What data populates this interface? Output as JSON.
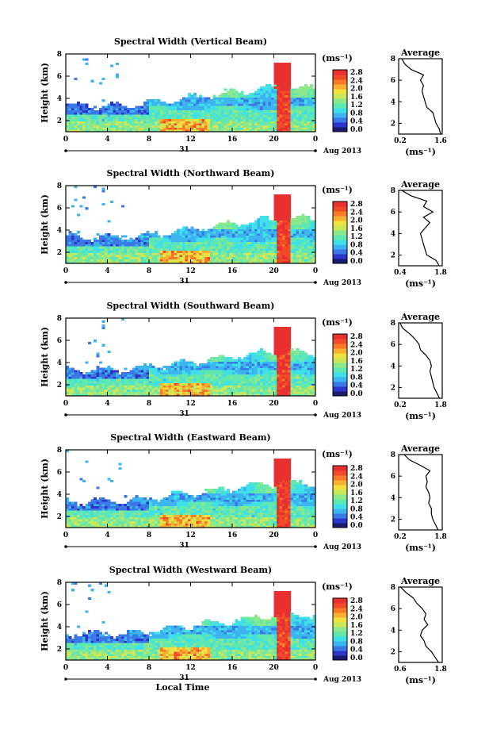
{
  "shared": {
    "height_axis_label": "Height (km)",
    "time_axis_label": "Local Time",
    "date_label": "Aug 2013",
    "day_label": "31",
    "unit_label": "(ms⁻¹)",
    "average_title": "Average",
    "x_ticks": [
      "0",
      "4",
      "8",
      "12",
      "16",
      "20",
      "0"
    ],
    "y_ticks": [
      "2",
      "4",
      "6",
      "8"
    ],
    "colorbar_ticks": [
      "2.8",
      "2.4",
      "2.0",
      "1.6",
      "1.2",
      "0.8",
      "0.4",
      "0.0"
    ],
    "colorbar_colors": [
      "#1a1a6e",
      "#2b35c8",
      "#3a78e6",
      "#3bb4f0",
      "#3fe0e8",
      "#5fe8b0",
      "#8ce88a",
      "#c8e85a",
      "#f0e040",
      "#f8b030",
      "#f87a28",
      "#f04a28",
      "#e83030"
    ]
  },
  "chart_data": [
    {
      "type": "heatmap",
      "title": "Spectral Width (Vertical Beam)",
      "xlabel": "",
      "ylabel": "Height (km)",
      "xlim": [
        0,
        24
      ],
      "ylim": [
        1,
        8
      ],
      "zlim": [
        0,
        2.8
      ],
      "avg_x_ticks": [
        "0.2",
        "1.6"
      ],
      "avg_xlim": [
        0.2,
        1.6
      ],
      "avg_profile": [
        [
          1.0,
          1.55
        ],
        [
          1.5,
          1.5
        ],
        [
          2.0,
          1.4
        ],
        [
          2.5,
          1.35
        ],
        [
          3.0,
          1.3
        ],
        [
          3.5,
          1.1
        ],
        [
          4.0,
          1.05
        ],
        [
          4.5,
          1.0
        ],
        [
          5.0,
          0.95
        ],
        [
          5.5,
          1.0
        ],
        [
          6.0,
          0.9
        ],
        [
          6.5,
          1.0
        ],
        [
          7.0,
          0.6
        ],
        [
          7.5,
          0.4
        ],
        [
          8.0,
          0.3
        ]
      ]
    },
    {
      "type": "heatmap",
      "title": "Spectral Width (Northward Beam)",
      "xlabel": "",
      "ylabel": "Height (km)",
      "xlim": [
        0,
        24
      ],
      "ylim": [
        1,
        8
      ],
      "zlim": [
        0,
        2.8
      ],
      "avg_x_ticks": [
        "0.4",
        "1.8"
      ],
      "avg_xlim": [
        0.4,
        1.8
      ],
      "avg_profile": [
        [
          1.0,
          1.7
        ],
        [
          1.5,
          1.6
        ],
        [
          2.0,
          1.3
        ],
        [
          2.5,
          1.25
        ],
        [
          3.0,
          1.2
        ],
        [
          3.5,
          1.15
        ],
        [
          4.0,
          1.1
        ],
        [
          4.5,
          1.25
        ],
        [
          5.0,
          1.4
        ],
        [
          5.5,
          1.2
        ],
        [
          6.0,
          1.5
        ],
        [
          6.5,
          1.2
        ],
        [
          7.0,
          1.3
        ],
        [
          7.5,
          0.8
        ],
        [
          8.0,
          0.5
        ]
      ]
    },
    {
      "type": "heatmap",
      "title": "Spectral Width (Southward Beam)",
      "xlabel": "",
      "ylabel": "Height (km)",
      "xlim": [
        0,
        24
      ],
      "ylim": [
        1,
        8
      ],
      "zlim": [
        0,
        2.8
      ],
      "avg_x_ticks": [
        "0.2",
        "1.8"
      ],
      "avg_xlim": [
        0.2,
        1.8
      ],
      "avg_profile": [
        [
          1.0,
          1.7
        ],
        [
          1.5,
          1.6
        ],
        [
          2.0,
          1.5
        ],
        [
          2.5,
          1.45
        ],
        [
          3.0,
          1.4
        ],
        [
          3.5,
          1.35
        ],
        [
          4.0,
          1.4
        ],
        [
          4.5,
          1.35
        ],
        [
          5.0,
          1.2
        ],
        [
          5.5,
          1.0
        ],
        [
          6.0,
          0.95
        ],
        [
          6.5,
          0.8
        ],
        [
          7.0,
          0.6
        ],
        [
          7.5,
          0.35
        ],
        [
          8.0,
          0.25
        ]
      ]
    },
    {
      "type": "heatmap",
      "title": "Spectral Width (Eastward Beam)",
      "xlabel": "",
      "ylabel": "Height (km)",
      "xlim": [
        0,
        24
      ],
      "ylim": [
        1,
        8
      ],
      "zlim": [
        0,
        2.8
      ],
      "avg_x_ticks": [
        "0.2",
        "1.8"
      ],
      "avg_xlim": [
        0.2,
        1.8
      ],
      "avg_profile": [
        [
          1.0,
          1.65
        ],
        [
          1.5,
          1.55
        ],
        [
          2.0,
          1.45
        ],
        [
          2.5,
          1.4
        ],
        [
          3.0,
          1.4
        ],
        [
          3.5,
          1.3
        ],
        [
          4.0,
          1.35
        ],
        [
          4.5,
          1.3
        ],
        [
          5.0,
          1.2
        ],
        [
          5.5,
          1.25
        ],
        [
          6.0,
          1.2
        ],
        [
          6.5,
          1.35
        ],
        [
          7.0,
          1.0
        ],
        [
          7.5,
          0.6
        ],
        [
          8.0,
          0.4
        ]
      ]
    },
    {
      "type": "heatmap",
      "title": "Spectral Width (Westward Beam)",
      "xlabel": "Local Time",
      "ylabel": "Height (km)",
      "xlim": [
        0,
        24
      ],
      "ylim": [
        1,
        8
      ],
      "zlim": [
        0,
        2.8
      ],
      "avg_x_ticks": [
        "0.6",
        "1.8"
      ],
      "avg_xlim": [
        0.6,
        1.8
      ],
      "avg_profile": [
        [
          1.0,
          1.7
        ],
        [
          1.5,
          1.6
        ],
        [
          2.0,
          1.5
        ],
        [
          2.5,
          1.35
        ],
        [
          3.0,
          1.3
        ],
        [
          3.5,
          1.2
        ],
        [
          4.0,
          1.25
        ],
        [
          4.5,
          1.4
        ],
        [
          5.0,
          1.3
        ],
        [
          5.5,
          1.35
        ],
        [
          6.0,
          1.25
        ],
        [
          6.5,
          1.1
        ],
        [
          7.0,
          1.0
        ],
        [
          7.5,
          0.8
        ],
        [
          8.0,
          0.65
        ]
      ]
    }
  ]
}
